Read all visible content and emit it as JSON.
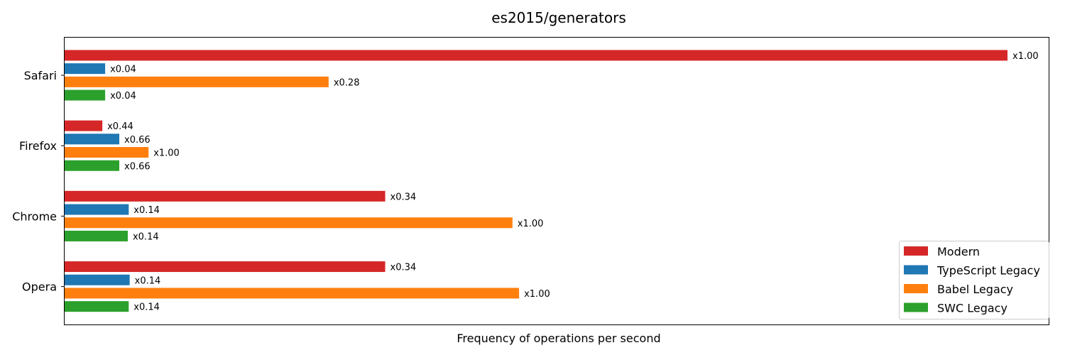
{
  "chart_data": {
    "type": "bar",
    "orientation": "horizontal",
    "title": "es2015/generators",
    "xlabel": "Frequency of operations per second",
    "ylabel": "",
    "xticks": "none",
    "grid": false,
    "legend_position": "bottom-right",
    "categories": [
      "Safari",
      "Firefox",
      "Chrome",
      "Opera"
    ],
    "series": [
      {
        "name": "Modern",
        "color": "#d62728",
        "values": [
          1.0,
          0.04,
          0.34,
          0.34
        ],
        "labels": [
          "x1.00",
          "x0.44",
          "x0.34",
          "x0.34"
        ]
      },
      {
        "name": "TypeScript Legacy",
        "color": "#1f77b4",
        "values": [
          0.043,
          0.058,
          0.068,
          0.069
        ],
        "labels": [
          "x0.04",
          "x0.66",
          "x0.14",
          "x0.14"
        ]
      },
      {
        "name": "Babel Legacy",
        "color": "#ff7f0e",
        "values": [
          0.28,
          0.089,
          0.475,
          0.482
        ],
        "labels": [
          "x0.28",
          "x1.00",
          "x1.00",
          "x1.00"
        ]
      },
      {
        "name": "SWC Legacy",
        "color": "#2ca02c",
        "values": [
          0.043,
          0.058,
          0.067,
          0.068
        ],
        "labels": [
          "x0.04",
          "x0.66",
          "x0.14",
          "x0.14"
        ]
      }
    ]
  }
}
